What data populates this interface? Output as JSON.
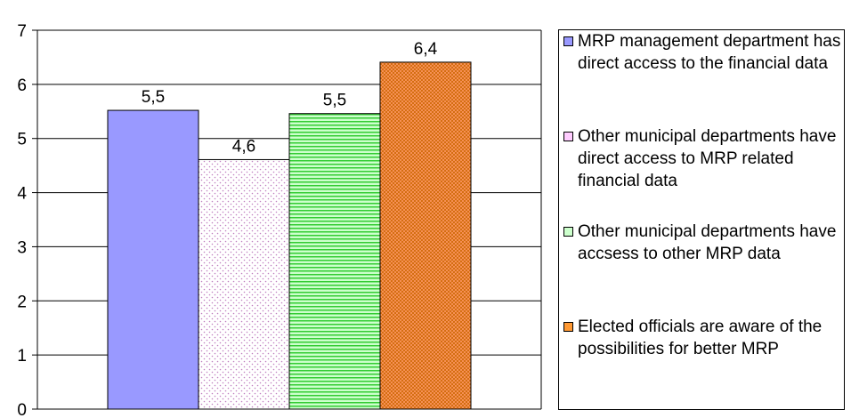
{
  "chart_data": {
    "type": "bar",
    "ylim": [
      0,
      7
    ],
    "yticks": [
      0,
      1,
      2,
      3,
      4,
      5,
      6,
      7
    ],
    "grid": true,
    "legend_position": "right",
    "series": [
      {
        "name": "MRP management department has direct access to the financial data",
        "value": 5.52,
        "label": "5,5",
        "color": "#9999ff",
        "pattern": "none"
      },
      {
        "name": "Other municipal departments have direct access to MRP related financial data",
        "value": 4.61,
        "label": "4,6",
        "color": "#ffccff",
        "pattern": "dots"
      },
      {
        "name": "Other municipal departments have accsess to other MRP data",
        "value": 5.46,
        "label": "5,5",
        "color": "#ccffcc",
        "pattern": "lines"
      },
      {
        "name": "Elected officials are aware of the possibilities for better MRP",
        "value": 6.41,
        "label": "6,4",
        "color": "#ff9933",
        "pattern": "cross"
      }
    ]
  }
}
